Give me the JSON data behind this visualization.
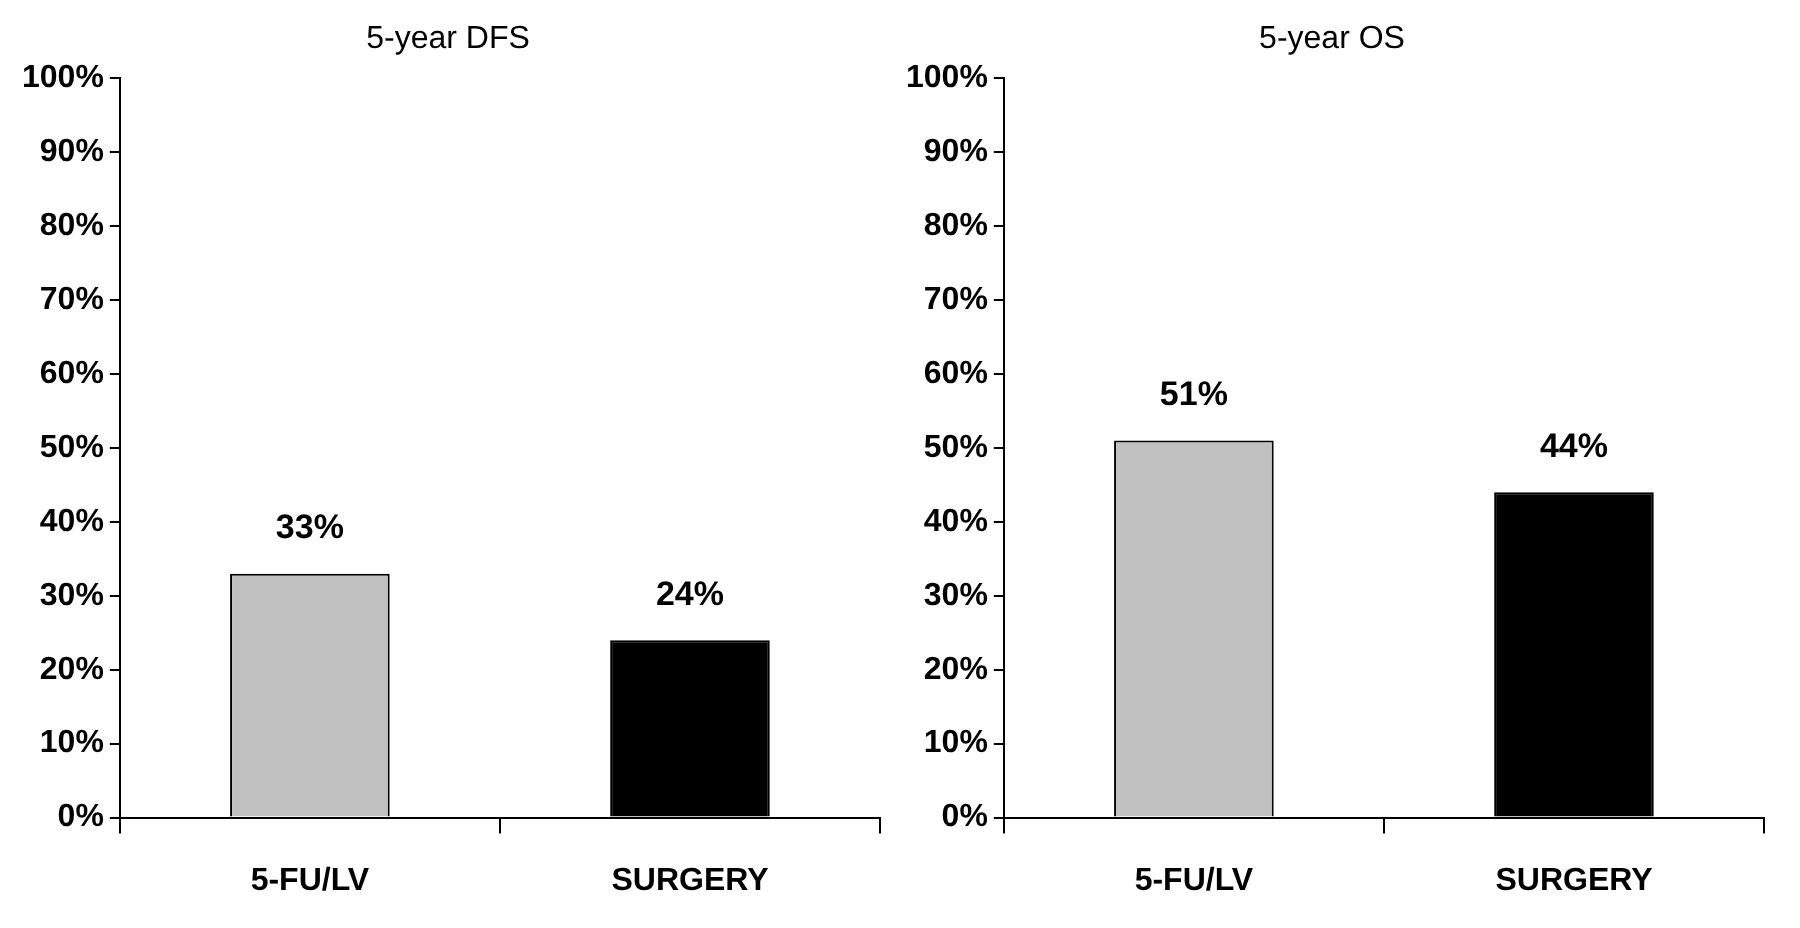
{
  "chart_data": [
    {
      "type": "bar",
      "title": "5-year DFS",
      "categories": [
        "5-FU/LV",
        "SURGERY"
      ],
      "values": [
        33,
        24
      ],
      "colors": [
        "#c0c0c0",
        "#000000"
      ],
      "ylim": [
        0,
        100
      ],
      "yticks": [
        {
          "value": 0,
          "label": "0%"
        },
        {
          "value": 10,
          "label": "10%"
        },
        {
          "value": 20,
          "label": "20%"
        },
        {
          "value": 30,
          "label": "30%"
        },
        {
          "value": 40,
          "label": "40%"
        },
        {
          "value": 50,
          "label": "50%"
        },
        {
          "value": 60,
          "label": "60%"
        },
        {
          "value": 70,
          "label": "70%"
        },
        {
          "value": 80,
          "label": "80%"
        },
        {
          "value": 90,
          "label": "90%"
        },
        {
          "value": 100,
          "label": "100%"
        }
      ],
      "value_labels": [
        "33%",
        "24%"
      ],
      "grid": false,
      "legend": false
    },
    {
      "type": "bar",
      "title": "5-year OS",
      "categories": [
        "5-FU/LV",
        "SURGERY"
      ],
      "values": [
        51,
        44
      ],
      "colors": [
        "#c0c0c0",
        "#000000"
      ],
      "ylim": [
        0,
        100
      ],
      "yticks": [
        {
          "value": 0,
          "label": "0%"
        },
        {
          "value": 10,
          "label": "10%"
        },
        {
          "value": 20,
          "label": "20%"
        },
        {
          "value": 30,
          "label": "30%"
        },
        {
          "value": 40,
          "label": "40%"
        },
        {
          "value": 50,
          "label": "50%"
        },
        {
          "value": 60,
          "label": "60%"
        },
        {
          "value": 70,
          "label": "70%"
        },
        {
          "value": 80,
          "label": "80%"
        },
        {
          "value": 90,
          "label": "90%"
        },
        {
          "value": 100,
          "label": "100%"
        }
      ],
      "value_labels": [
        "51%",
        "44%"
      ],
      "grid": false,
      "legend": false
    }
  ]
}
